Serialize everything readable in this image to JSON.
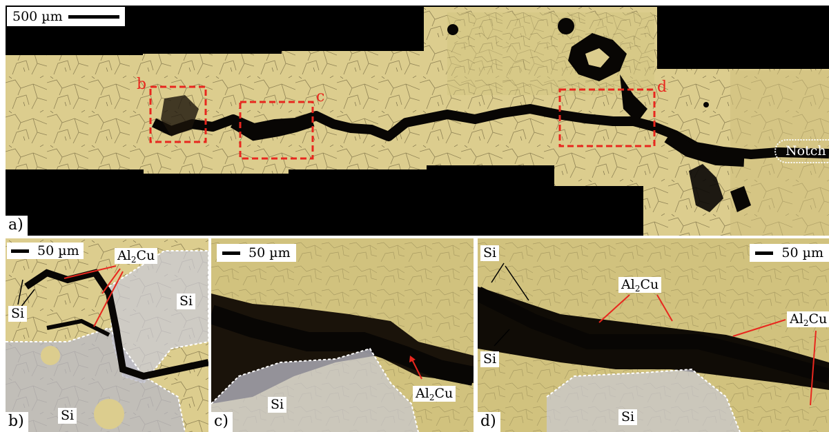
{
  "panel_a": {
    "panel_label": "a)",
    "scale_bar": "500 µm",
    "region_labels": [
      "b",
      "c",
      "d"
    ],
    "notch_label": "Notch"
  },
  "panel_b": {
    "panel_label": "b)",
    "scale_bar": "50 µm",
    "labels": {
      "al2cu_main": "Al",
      "al2cu_sub": "2",
      "al2cu_tail": "Cu",
      "si_left": "Si",
      "si_right": "Si",
      "si_bottom": "Si"
    }
  },
  "panel_c": {
    "panel_label": "c)",
    "scale_bar": "50 µm",
    "labels": {
      "si": "Si",
      "al2cu_main": "Al",
      "al2cu_sub": "2",
      "al2cu_tail": "Cu"
    }
  },
  "panel_d": {
    "panel_label": "d)",
    "scale_bar": "50 µm",
    "labels": {
      "si_top": "Si",
      "si_mid": "Si",
      "si_bottom": "Si",
      "al2cu_1_main": "Al",
      "al2cu_1_sub": "2",
      "al2cu_1_tail": "Cu",
      "al2cu_2_main": "Al",
      "al2cu_2_sub": "2",
      "al2cu_2_tail": "Cu"
    }
  },
  "colors": {
    "matrix": "#dccd8e",
    "crack": "#080604",
    "highlight": "#e8271e",
    "phase_overlay": "#c9c9d6"
  }
}
